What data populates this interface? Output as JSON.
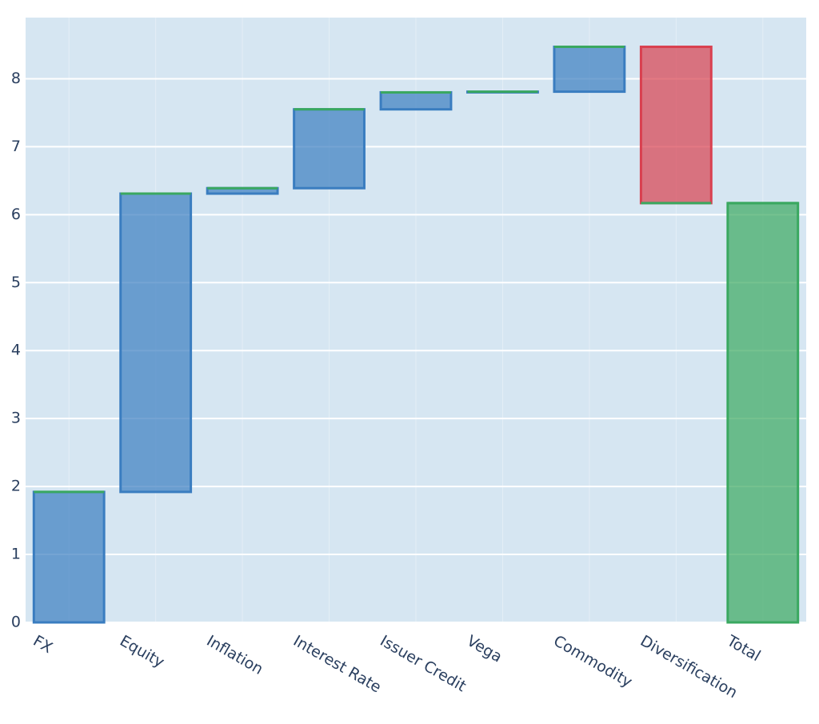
{
  "chart_data": {
    "type": "waterfall",
    "categories": [
      "FX",
      "Equity",
      "Inflation",
      "Interest Rate",
      "Issuer Credit",
      "Vega",
      "Commodity",
      "Diversification",
      "Total"
    ],
    "measure": [
      "relative",
      "relative",
      "relative",
      "relative",
      "relative",
      "relative",
      "relative",
      "relative",
      "total"
    ],
    "values": [
      1.92,
      4.39,
      0.08,
      1.16,
      0.25,
      0.01,
      0.66,
      -2.3,
      6.17
    ],
    "increasing_color": "#3a7dc0",
    "decreasing_color": "#d9404f",
    "totals_color": "#3aa860",
    "connector_color": "#3aa860",
    "ylim": [
      0,
      8.9
    ],
    "yticks": [
      0,
      1,
      2,
      3,
      4,
      5,
      6,
      7,
      8
    ],
    "grid": true
  }
}
